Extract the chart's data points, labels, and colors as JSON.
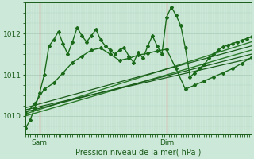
{
  "xlabel": "Pression niveau de la mer( hPa )",
  "bg_color": "#cce8d8",
  "plot_bg_color": "#cce8d8",
  "grid_color": "#aaccb8",
  "vline_color": "#e06060",
  "line_dark": "#1a5c1a",
  "line_mid": "#2a7a2a",
  "yticks": [
    1010,
    1011,
    1012
  ],
  "ylim": [
    1009.55,
    1012.75
  ],
  "xlim": [
    0,
    48
  ],
  "sam_x": 3,
  "dim_x": 30,
  "tick_color": "#1a5c1a",
  "xlabel_color": "#1a5c1a",
  "series": {
    "wavy1": {
      "x": [
        0,
        1,
        2,
        3,
        4,
        5,
        6,
        7,
        8,
        9,
        10,
        11,
        12,
        13,
        14,
        15,
        16,
        17,
        18,
        19,
        20,
        21,
        22,
        23,
        24,
        25,
        26,
        27,
        28,
        29,
        30,
        31,
        32,
        33,
        34,
        35,
        36,
        37,
        38,
        39,
        40,
        41,
        42,
        43,
        44,
        45,
        46,
        47,
        48
      ],
      "y": [
        1009.7,
        1009.9,
        1010.2,
        1010.55,
        1011.0,
        1011.7,
        1011.85,
        1012.05,
        1011.75,
        1011.5,
        1011.8,
        1012.15,
        1011.95,
        1011.8,
        1011.95,
        1012.1,
        1011.85,
        1011.7,
        1011.6,
        1011.5,
        1011.6,
        1011.65,
        1011.45,
        1011.3,
        1011.55,
        1011.4,
        1011.7,
        1011.95,
        1011.7,
        1011.5,
        1012.4,
        1012.65,
        1012.45,
        1012.2,
        1011.65,
        1010.95,
        1011.05,
        1011.15,
        1011.25,
        1011.4,
        1011.5,
        1011.6,
        1011.68,
        1011.72,
        1011.76,
        1011.8,
        1011.84,
        1011.88,
        1011.92
      ],
      "color": "#1a6a1a",
      "lw": 1.0,
      "marker": "D",
      "ms": 2.0
    },
    "wavy2": {
      "x": [
        0,
        2,
        4,
        6,
        8,
        10,
        12,
        14,
        16,
        18,
        20,
        22,
        24,
        26,
        28,
        30,
        32,
        34,
        36,
        38,
        40,
        42,
        44,
        46,
        48
      ],
      "y": [
        1010.05,
        1010.3,
        1010.65,
        1010.8,
        1011.05,
        1011.3,
        1011.45,
        1011.6,
        1011.65,
        1011.5,
        1011.35,
        1011.4,
        1011.48,
        1011.52,
        1011.58,
        1011.62,
        1011.15,
        1010.65,
        1010.75,
        1010.85,
        1010.95,
        1011.05,
        1011.15,
        1011.28,
        1011.42
      ],
      "color": "#1a6a1a",
      "lw": 1.0,
      "marker": "D",
      "ms": 2.0
    },
    "trend1": {
      "x": [
        0,
        48
      ],
      "y": [
        1010.0,
        1011.6
      ],
      "color": "#2a7a2a",
      "lw": 1.0
    },
    "trend2": {
      "x": [
        0,
        48
      ],
      "y": [
        1010.05,
        1011.8
      ],
      "color": "#2a7a2a",
      "lw": 1.0
    },
    "trend3": {
      "x": [
        0,
        48
      ],
      "y": [
        1010.1,
        1011.5
      ],
      "color": "#1a5c1a",
      "lw": 0.9
    },
    "trend4": {
      "x": [
        0,
        48
      ],
      "y": [
        1010.15,
        1011.4
      ],
      "color": "#1a5c1a",
      "lw": 0.9
    },
    "trend5": {
      "x": [
        0,
        48
      ],
      "y": [
        1010.2,
        1011.7
      ],
      "color": "#1a5c1a",
      "lw": 0.9
    }
  }
}
